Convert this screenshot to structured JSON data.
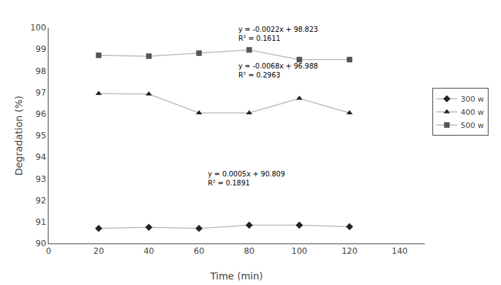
{
  "chart_data": {
    "type": "line",
    "x": [
      20,
      40,
      60,
      80,
      100,
      120
    ],
    "color": "#bbbbbb",
    "series": [
      {
        "name": "300 w",
        "color": "#222222",
        "marker": "diamond",
        "line_style": "solid",
        "values": [
          90.7,
          90.75,
          90.7,
          90.85,
          90.85,
          90.78
        ]
      },
      {
        "name": "400 w",
        "color": "#222222",
        "marker": "triangle-up",
        "line_style": "solid",
        "values": [
          96.95,
          96.92,
          96.05,
          96.05,
          96.72,
          96.05
        ]
      },
      {
        "name": "500 w",
        "color": "#555555",
        "marker": "square",
        "line_style": "solid",
        "values": [
          98.72,
          98.68,
          98.82,
          98.97,
          98.52,
          98.52
        ]
      }
    ],
    "annotations": [
      {
        "text": "y = 0.0005x + 90.809\nR² = 0.1891",
        "x": 63,
        "y": 92.55
      },
      {
        "text": "y = -0.0068x + 96.988\nR² = 0.2963",
        "x": 75,
        "y": 97.55
      },
      {
        "text": "y = -0.0022x + 98.823\nR² = 0.1611",
        "x": 75,
        "y": 99.25
      }
    ],
    "xlabel": "Time (min)",
    "ylabel": "Degradation (%)",
    "xlim": [
      0,
      150
    ],
    "ylim": [
      90,
      100
    ],
    "xticks": [
      0,
      20,
      40,
      60,
      80,
      100,
      120,
      140
    ],
    "yticks": [
      90,
      91,
      92,
      93,
      94,
      95,
      96,
      97,
      98,
      99,
      100
    ],
    "grid": false,
    "legend": "right"
  }
}
